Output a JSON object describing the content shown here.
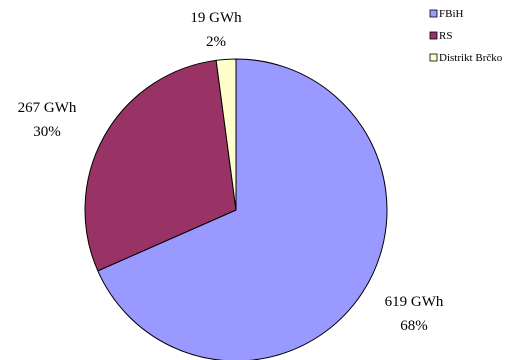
{
  "chart_data": {
    "type": "pie",
    "title": "",
    "slices": [
      {
        "label": "FBiH",
        "value": 619,
        "value_text": "619 GWh",
        "percent_text": "68%",
        "color": "#9999ff"
      },
      {
        "label": "RS",
        "value": 267,
        "value_text": "267 GWh",
        "percent_text": "30%",
        "color": "#993366"
      },
      {
        "label": "Distrikt Brčko",
        "value": 19,
        "value_text": "19 GWh",
        "percent_text": "2%",
        "color": "#ffffcc"
      }
    ],
    "legend_position": "top-right",
    "start_angle_deg": 0,
    "direction": "clockwise"
  }
}
